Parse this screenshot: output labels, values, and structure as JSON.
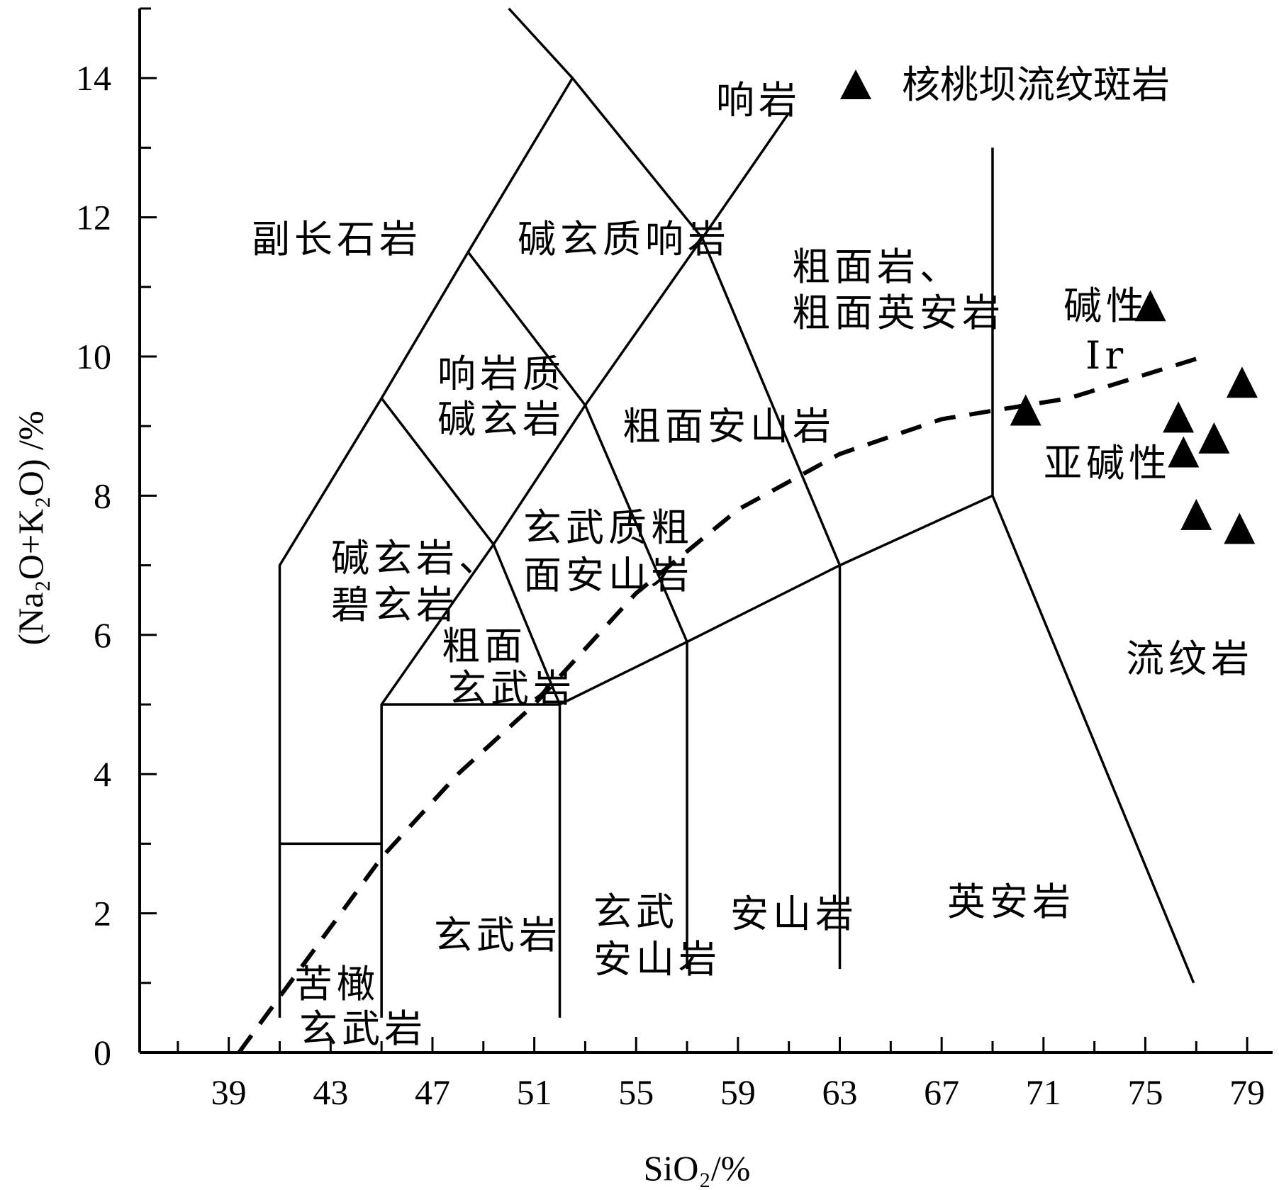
{
  "chart_data": {
    "type": "scatter",
    "xlabel": "SiO₂/%",
    "ylabel": "(Na₂O+K₂O) /%",
    "xlim": [
      35.5,
      80
    ],
    "ylim": [
      0,
      15
    ],
    "x_ticks": [
      39,
      43,
      47,
      51,
      55,
      59,
      63,
      67,
      71,
      75,
      79
    ],
    "y_ticks": [
      0,
      2,
      4,
      6,
      8,
      10,
      12,
      14
    ],
    "legend": {
      "position": "top-right",
      "marker": "triangle",
      "label": "核桃坝流纹斑岩"
    },
    "series": [
      {
        "name": "核桃坝流纹斑岩",
        "marker": "filled-triangle",
        "color": "#000000",
        "points": [
          {
            "x": 75.2,
            "y": 10.7
          },
          {
            "x": 70.3,
            "y": 9.2
          },
          {
            "x": 78.8,
            "y": 9.6
          },
          {
            "x": 76.3,
            "y": 9.1
          },
          {
            "x": 76.5,
            "y": 8.6
          },
          {
            "x": 77.7,
            "y": 8.8
          },
          {
            "x": 77.0,
            "y": 7.7
          },
          {
            "x": 78.7,
            "y": 7.5
          }
        ]
      }
    ],
    "classification_boundaries": [
      [
        [
          41,
          0.5
        ],
        [
          41,
          7
        ],
        [
          45,
          9.4
        ],
        [
          48.4,
          11.5
        ],
        [
          52.5,
          14
        ],
        [
          57.6,
          11.7
        ],
        [
          63,
          7
        ],
        [
          63,
          1.2
        ]
      ],
      [
        [
          41,
          3
        ],
        [
          45,
          3
        ]
      ],
      [
        [
          45,
          0.5
        ],
        [
          45,
          5
        ],
        [
          49.4,
          7.3
        ],
        [
          53,
          9.3
        ],
        [
          57.6,
          11.7
        ],
        [
          61,
          13.5
        ]
      ],
      [
        [
          45,
          9.4
        ],
        [
          49.4,
          7.3
        ],
        [
          52,
          5
        ],
        [
          52,
          0.5
        ]
      ],
      [
        [
          48.4,
          11.5
        ],
        [
          53,
          9.3
        ],
        [
          57,
          5.9
        ],
        [
          57,
          1.2
        ]
      ],
      [
        [
          45,
          5
        ],
        [
          52,
          5
        ],
        [
          57,
          5.9
        ],
        [
          63,
          7
        ],
        [
          69,
          8
        ]
      ],
      [
        [
          69,
          13
        ],
        [
          69,
          8
        ],
        [
          76.9,
          1
        ]
      ],
      [
        [
          50,
          15
        ],
        [
          52.5,
          14
        ]
      ]
    ],
    "alkaline_divide": [
      [
        39.4,
        0
      ],
      [
        45,
        2.8
      ],
      [
        48,
        4
      ],
      [
        51,
        5
      ],
      [
        55,
        6.6
      ],
      [
        59,
        7.8
      ],
      [
        63,
        8.6
      ],
      [
        67,
        9.1
      ],
      [
        72,
        9.4
      ],
      [
        77.3,
        10
      ]
    ],
    "region_labels": [
      {
        "text": "响岩"
      },
      {
        "text": "副长石岩"
      },
      {
        "text": "碱玄质响岩"
      },
      {
        "text": "粗面岩、"
      },
      {
        "text": "粗面英安岩"
      },
      {
        "text": "碱性"
      },
      {
        "text": "Ir"
      },
      {
        "text": "响岩质"
      },
      {
        "text": "碱玄岩"
      },
      {
        "text": "粗面安山岩"
      },
      {
        "text": "亚碱性"
      },
      {
        "text": "玄武质粗"
      },
      {
        "text": "面安山岩"
      },
      {
        "text": "碱玄岩、"
      },
      {
        "text": "碧玄岩"
      },
      {
        "text": "粗面"
      },
      {
        "text": "玄武岩"
      },
      {
        "text": "流纹岩"
      },
      {
        "text": "英安岩"
      },
      {
        "text": "玄武岩"
      },
      {
        "text": "玄武"
      },
      {
        "text": "安山岩"
      },
      {
        "text": "安山岩"
      },
      {
        "text": "苦橄"
      },
      {
        "text": "玄武岩"
      }
    ]
  }
}
